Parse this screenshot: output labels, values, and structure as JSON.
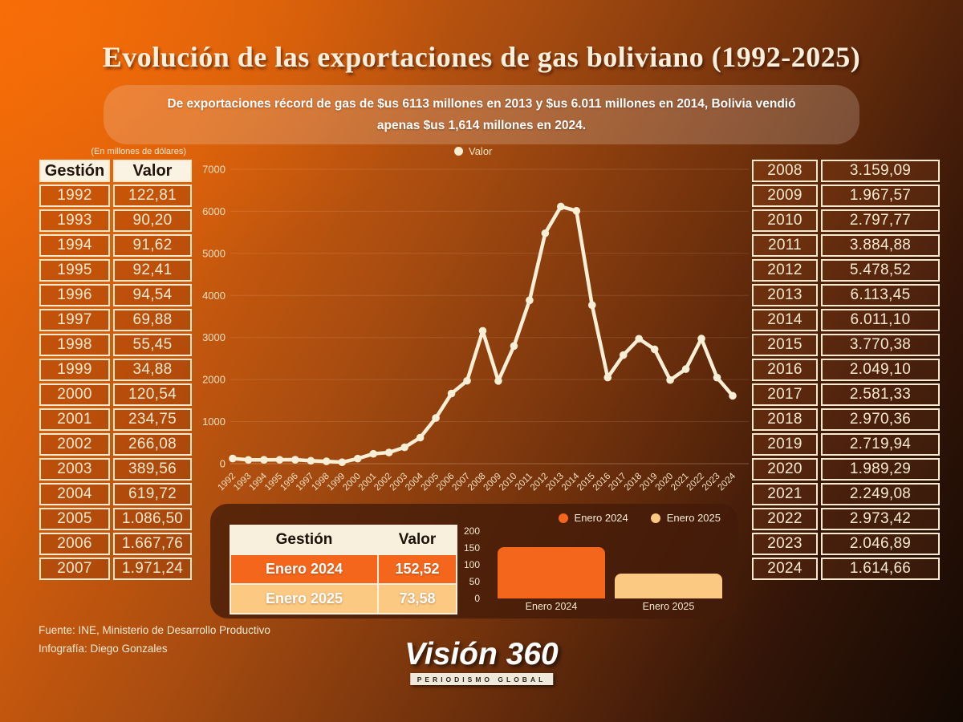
{
  "page": {
    "title": "Evolución de las exportaciones de gas boliviano (1992-2025)",
    "subtitle": "De exportaciones récord de gas de $us 6113 millones en 2013 y $us 6.011 millones en 2014, Bolivia vendió apenas $us 1,614 millones en 2024.",
    "unit_note": "(En millones de dólares)"
  },
  "tables": {
    "headers": {
      "gestion": "Gestión",
      "valor": "Valor"
    },
    "left_rows": [
      [
        "1992",
        "122,81"
      ],
      [
        "1993",
        "90,20"
      ],
      [
        "1994",
        "91,62"
      ],
      [
        "1995",
        "92,41"
      ],
      [
        "1996",
        "94,54"
      ],
      [
        "1997",
        "69,88"
      ],
      [
        "1998",
        "55,45"
      ],
      [
        "1999",
        "34,88"
      ],
      [
        "2000",
        "120,54"
      ],
      [
        "2001",
        "234,75"
      ],
      [
        "2002",
        "266,08"
      ],
      [
        "2003",
        "389,56"
      ],
      [
        "2004",
        "619,72"
      ],
      [
        "2005",
        "1.086,50"
      ],
      [
        "2006",
        "1.667,76"
      ],
      [
        "2007",
        "1.971,24"
      ]
    ],
    "right_rows": [
      [
        "2008",
        "3.159,09"
      ],
      [
        "2009",
        "1.967,57"
      ],
      [
        "2010",
        "2.797,77"
      ],
      [
        "2011",
        "3.884,88"
      ],
      [
        "2012",
        "5.478,52"
      ],
      [
        "2013",
        "6.113,45"
      ],
      [
        "2014",
        "6.011,10"
      ],
      [
        "2015",
        "3.770,38"
      ],
      [
        "2016",
        "2.049,10"
      ],
      [
        "2017",
        "2.581,33"
      ],
      [
        "2018",
        "2.970,36"
      ],
      [
        "2019",
        "2.719,94"
      ],
      [
        "2020",
        "1.989,29"
      ],
      [
        "2021",
        "2.249,08"
      ],
      [
        "2022",
        "2.973,42"
      ],
      [
        "2023",
        "2.046,89"
      ],
      [
        "2024",
        "1.614,66"
      ]
    ]
  },
  "mini_table": {
    "rows": [
      {
        "label": "Enero 2024",
        "value": "152,52",
        "bg": "#f4661b"
      },
      {
        "label": "Enero 2025",
        "value": "73,58",
        "bg": "#fbc981"
      }
    ]
  },
  "chart_data": [
    {
      "type": "line",
      "legend": [
        "Valor"
      ],
      "legend_position": "top",
      "x": [
        "1992",
        "1993",
        "1994",
        "1995",
        "1996",
        "1997",
        "1998",
        "1999",
        "2000",
        "2001",
        "2002",
        "2003",
        "2004",
        "2005",
        "2006",
        "2007",
        "2008",
        "2009",
        "2010",
        "2011",
        "2012",
        "2013",
        "2014",
        "2015",
        "2016",
        "2017",
        "2018",
        "2019",
        "2020",
        "2021",
        "2022",
        "2023",
        "2024"
      ],
      "series": [
        {
          "name": "Valor",
          "values": [
            122.81,
            90.2,
            91.62,
            92.41,
            94.54,
            69.88,
            55.45,
            34.88,
            120.54,
            234.75,
            266.08,
            389.56,
            619.72,
            1086.5,
            1667.76,
            1971.24,
            3159.09,
            1967.57,
            2797.77,
            3884.88,
            5478.52,
            6113.45,
            6011.1,
            3770.38,
            2049.1,
            2581.33,
            2970.36,
            2719.94,
            1989.29,
            2249.08,
            2973.42,
            2046.89,
            1614.66
          ]
        }
      ],
      "ylim": [
        0,
        7000
      ],
      "yticks": [
        0,
        1000,
        2000,
        3000,
        4000,
        5000,
        6000,
        7000
      ],
      "grid": true,
      "line_color": "#f9efd6"
    },
    {
      "type": "bar",
      "categories": [
        "Enero 2024",
        "Enero 2025"
      ],
      "values": [
        152.52,
        73.58
      ],
      "colors": [
        "#f4661b",
        "#fbc981"
      ],
      "ylim": [
        0,
        200
      ],
      "yticks": [
        0,
        50,
        100,
        150,
        200
      ],
      "legend": [
        "Enero 2024",
        "Enero 2025"
      ],
      "legend_position": "top-right"
    }
  ],
  "footer": {
    "source": "Fuente: INE, Ministerio de Desarrollo Productivo",
    "credit": "Infografía: Diego Gonzales",
    "logo_title": "Visión 360",
    "logo_subtitle": "PERIODISMO GLOBAL"
  }
}
